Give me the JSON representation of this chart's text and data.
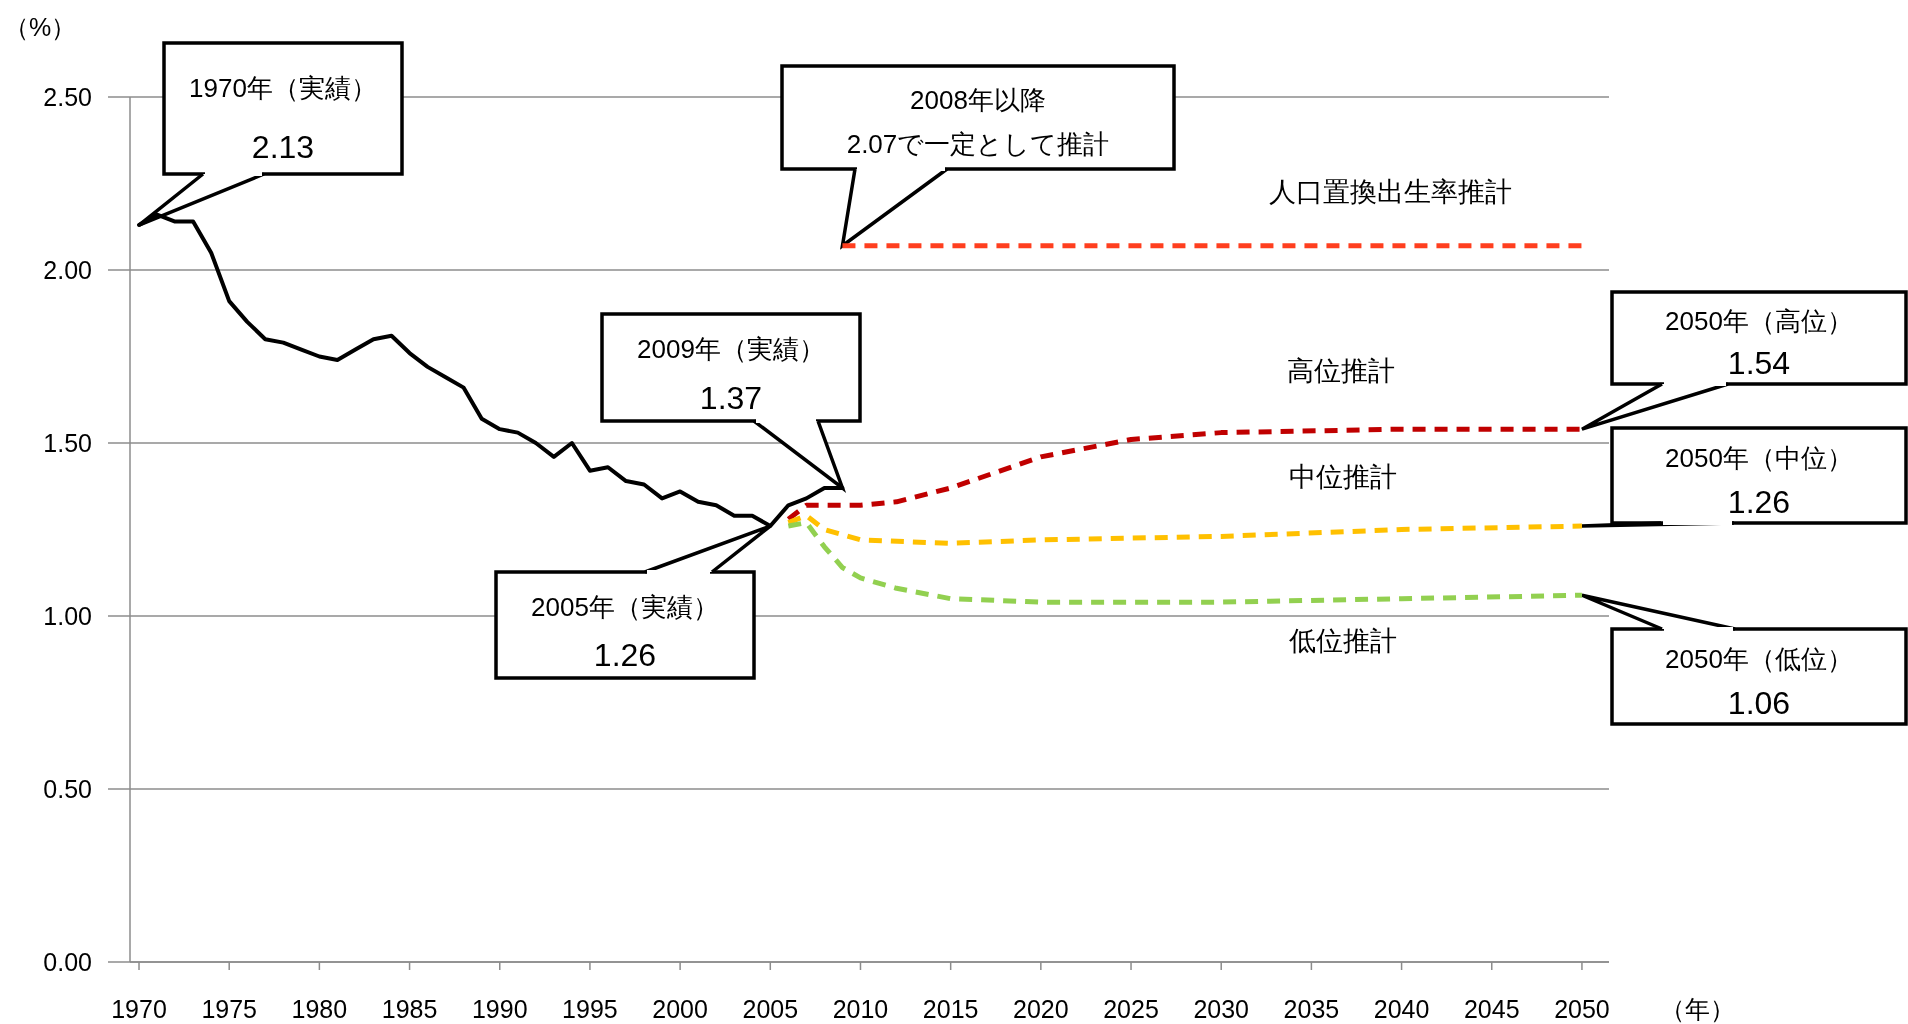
{
  "chart_data": {
    "type": "line",
    "ylabel": "（%）",
    "xlabel": "（年）",
    "xlim": [
      1969.5,
      2051.5
    ],
    "ylim": [
      0,
      2.5
    ],
    "xticks": [
      1970,
      1975,
      1980,
      1985,
      1990,
      1995,
      2000,
      2005,
      2010,
      2015,
      2020,
      2025,
      2030,
      2035,
      2040,
      2045,
      2050
    ],
    "yticks": [
      {
        "value": 0,
        "label": "0.00"
      },
      {
        "value": 0.5,
        "label": "0.50"
      },
      {
        "value": 1,
        "label": "1.00"
      },
      {
        "value": 1.5,
        "label": "1.50"
      },
      {
        "value": 2,
        "label": "2.00"
      },
      {
        "value": 2.5,
        "label": "2.50"
      }
    ],
    "grid": "y",
    "marker": "none",
    "series": [
      {
        "color": "#000000",
        "line_style": "solid",
        "x": [
          1970,
          1971,
          1972,
          1973,
          1974,
          1975,
          1976,
          1977,
          1978,
          1979,
          1980,
          1981,
          1982,
          1983,
          1984,
          1985,
          1986,
          1987,
          1988,
          1989,
          1990,
          1991,
          1992,
          1993,
          1994,
          1995,
          1996,
          1997,
          1998,
          1999,
          2000,
          2001,
          2002,
          2003,
          2004,
          2005,
          2006,
          2007,
          2008,
          2009
        ],
        "values": [
          2.13,
          2.16,
          2.14,
          2.14,
          2.05,
          1.91,
          1.85,
          1.8,
          1.79,
          1.77,
          1.75,
          1.74,
          1.77,
          1.8,
          1.81,
          1.76,
          1.72,
          1.69,
          1.66,
          1.57,
          1.54,
          1.53,
          1.5,
          1.46,
          1.5,
          1.42,
          1.43,
          1.39,
          1.38,
          1.34,
          1.36,
          1.33,
          1.32,
          1.29,
          1.29,
          1.26,
          1.32,
          1.34,
          1.37,
          1.37
        ]
      },
      {
        "name": "人口置換出生率推計",
        "color": "#ff3f1f",
        "line_style": "dashed",
        "x": [
          2009,
          2050
        ],
        "values": [
          2.07,
          2.07
        ]
      },
      {
        "name": "高位推計",
        "color": "#c00000",
        "line_style": "dashed",
        "x": [
          2006,
          2007,
          2010,
          2012,
          2015,
          2020,
          2025,
          2030,
          2040,
          2050
        ],
        "values": [
          1.28,
          1.32,
          1.32,
          1.33,
          1.37,
          1.46,
          1.51,
          1.53,
          1.54,
          1.54
        ]
      },
      {
        "name": "中位推計",
        "color": "#ffc000",
        "line_style": "dashed",
        "x": [
          2006,
          2007,
          2008,
          2010,
          2015,
          2020,
          2030,
          2040,
          2050
        ],
        "values": [
          1.27,
          1.29,
          1.25,
          1.22,
          1.21,
          1.22,
          1.23,
          1.25,
          1.26
        ]
      },
      {
        "name": "低位推計",
        "color": "#92d050",
        "line_style": "dashed",
        "x": [
          2006,
          2007,
          2008,
          2009,
          2010,
          2012,
          2015,
          2020,
          2030,
          2040,
          2050
        ],
        "values": [
          1.26,
          1.27,
          1.2,
          1.14,
          1.11,
          1.08,
          1.05,
          1.04,
          1.04,
          1.05,
          1.06
        ]
      }
    ],
    "annotations": [
      {
        "text": "1970年（実績）\n2.13",
        "x": 1970,
        "y": 2.13
      },
      "2008年以降\n2.07で一定として推計",
      {
        "text": "2009年（実績）\n1.37",
        "x": 2009,
        "y": 1.37
      },
      {
        "text": "2005年（実績）\n1.26",
        "x": 2005,
        "y": 1.26
      },
      {
        "text": "2050年（高位）\n1.54",
        "x": 2050,
        "y": 1.54
      },
      {
        "text": "2050年（中位）\n1.26",
        "x": 2050,
        "y": 1.26
      },
      {
        "text": "2050年（低位）\n1.06",
        "x": 2050,
        "y": 1.06
      }
    ]
  }
}
